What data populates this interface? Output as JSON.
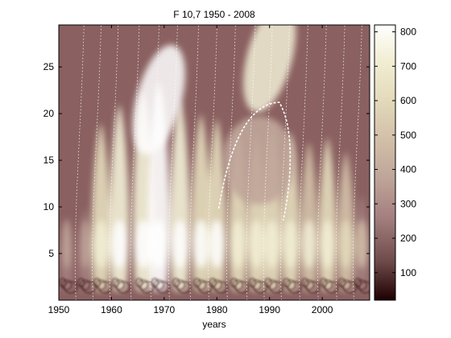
{
  "chart_data": {
    "type": "heatmap",
    "title": "F 10,7  1950 - 2008",
    "xlabel": "years",
    "ylabel": "",
    "xlim": [
      1950,
      2009
    ],
    "ylim": [
      0,
      29.5
    ],
    "x_ticks": [
      1950,
      1960,
      1970,
      1980,
      1990,
      2000
    ],
    "y_ticks": [
      5,
      10,
      15,
      20,
      25
    ],
    "colorbar": {
      "range": [
        20,
        820
      ],
      "ticks": [
        100,
        200,
        300,
        400,
        500,
        600,
        700,
        800
      ],
      "colormap": "pink",
      "colors": [
        "#1e0000",
        "#6e4a4a",
        "#a47f7f",
        "#c0a69a",
        "#d4c2aa",
        "#e4dcbc",
        "#f2efd6",
        "#ffffff"
      ]
    },
    "grid": false,
    "bands": [
      {
        "x": 1951.5,
        "amp": 200
      },
      {
        "x": 1955.0,
        "amp": 240
      },
      {
        "x": 1958.0,
        "amp": 600
      },
      {
        "x": 1961.5,
        "amp": 680
      },
      {
        "x": 1966.0,
        "amp": 740
      },
      {
        "x": 1969.0,
        "amp": 780
      },
      {
        "x": 1973.0,
        "amp": 700
      },
      {
        "x": 1977.0,
        "amp": 640
      },
      {
        "x": 1980.0,
        "amp": 620
      },
      {
        "x": 1984.0,
        "amp": 580
      },
      {
        "x": 1987.5,
        "amp": 560
      },
      {
        "x": 1990.5,
        "amp": 600
      },
      {
        "x": 1994.0,
        "amp": 560
      },
      {
        "x": 1997.5,
        "amp": 520
      },
      {
        "x": 2001.0,
        "amp": 540
      },
      {
        "x": 2004.5,
        "amp": 480
      },
      {
        "x": 2007.5,
        "amp": 300
      }
    ],
    "features": [
      {
        "kind": "ridge",
        "x": 1969,
        "y": 21.5,
        "value": 800
      },
      {
        "kind": "ridge",
        "x": 1990,
        "y": 26,
        "value": 720
      },
      {
        "kind": "trough",
        "x": 1988,
        "y": 15,
        "value": 350
      }
    ]
  }
}
